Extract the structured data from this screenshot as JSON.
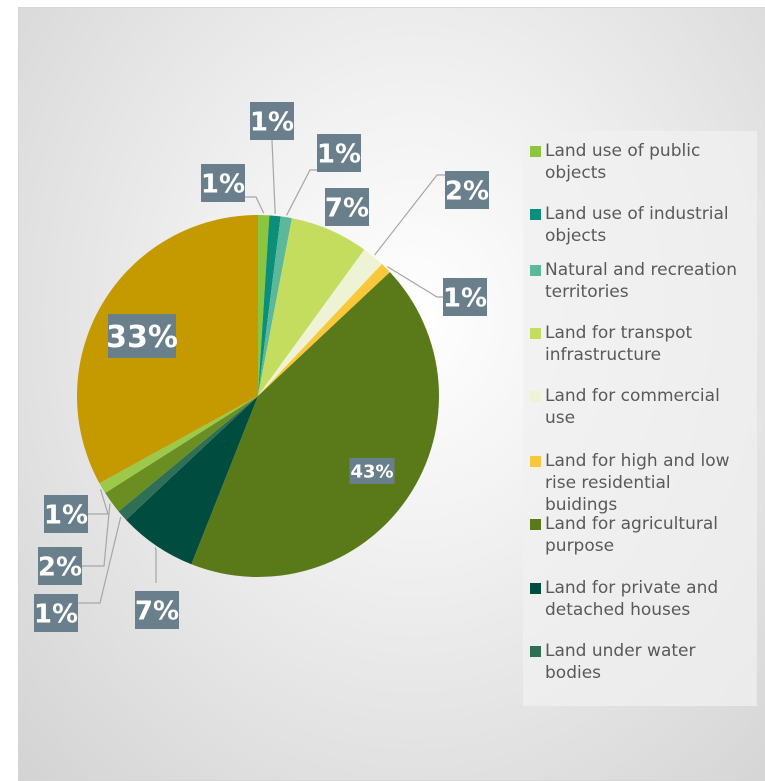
{
  "chart_data": {
    "type": "pie",
    "start_angle_deg": 0,
    "direction": "clockwise",
    "legend_position": "right",
    "slices": [
      {
        "label": [
          "Land use of public",
          "objects"
        ],
        "value": 1,
        "display": "1%",
        "color": "#8cc63f"
      },
      {
        "label": [
          "Land use of industrial",
          "objects"
        ],
        "value": 1,
        "display": "1%",
        "color": "#0b8f7a"
      },
      {
        "label": [
          "Natural  and recreation",
          "territories"
        ],
        "value": 1,
        "display": "1%",
        "color": "#5bb89a"
      },
      {
        "label": [
          "Land for transpot",
          "infrastructure"
        ],
        "value": 7,
        "display": "7%",
        "color": "#c5dd5f"
      },
      {
        "label": [
          "Land for commercial",
          "use"
        ],
        "value": 2,
        "display": "2%",
        "color": "#eef3d6"
      },
      {
        "label": [
          "Land for high and low",
          "rise residential",
          "buidings"
        ],
        "value": 1,
        "display": "1%",
        "color": "#f9c73a"
      },
      {
        "label": [
          "Land for agricultural",
          "purpose"
        ],
        "value": 43,
        "display": "43%",
        "color": "#5a7a1a"
      },
      {
        "label": [
          "Land for private and",
          "detached houses"
        ],
        "value": 7,
        "display": "7%",
        "color": "#004d40"
      },
      {
        "label": [
          "Land under water",
          "bodies"
        ],
        "value": 1,
        "display": "1%",
        "color": "#2f6f55"
      },
      {
        "label": [],
        "value": 2,
        "display": "2%",
        "color": "#6b8e23"
      },
      {
        "label": [],
        "value": 1,
        "display": "1%",
        "color": "#9cc94a"
      },
      {
        "label": [],
        "value": 33,
        "display": "33%",
        "color": "#c49a00"
      }
    ],
    "label_box_color": "#6a7f8c"
  }
}
